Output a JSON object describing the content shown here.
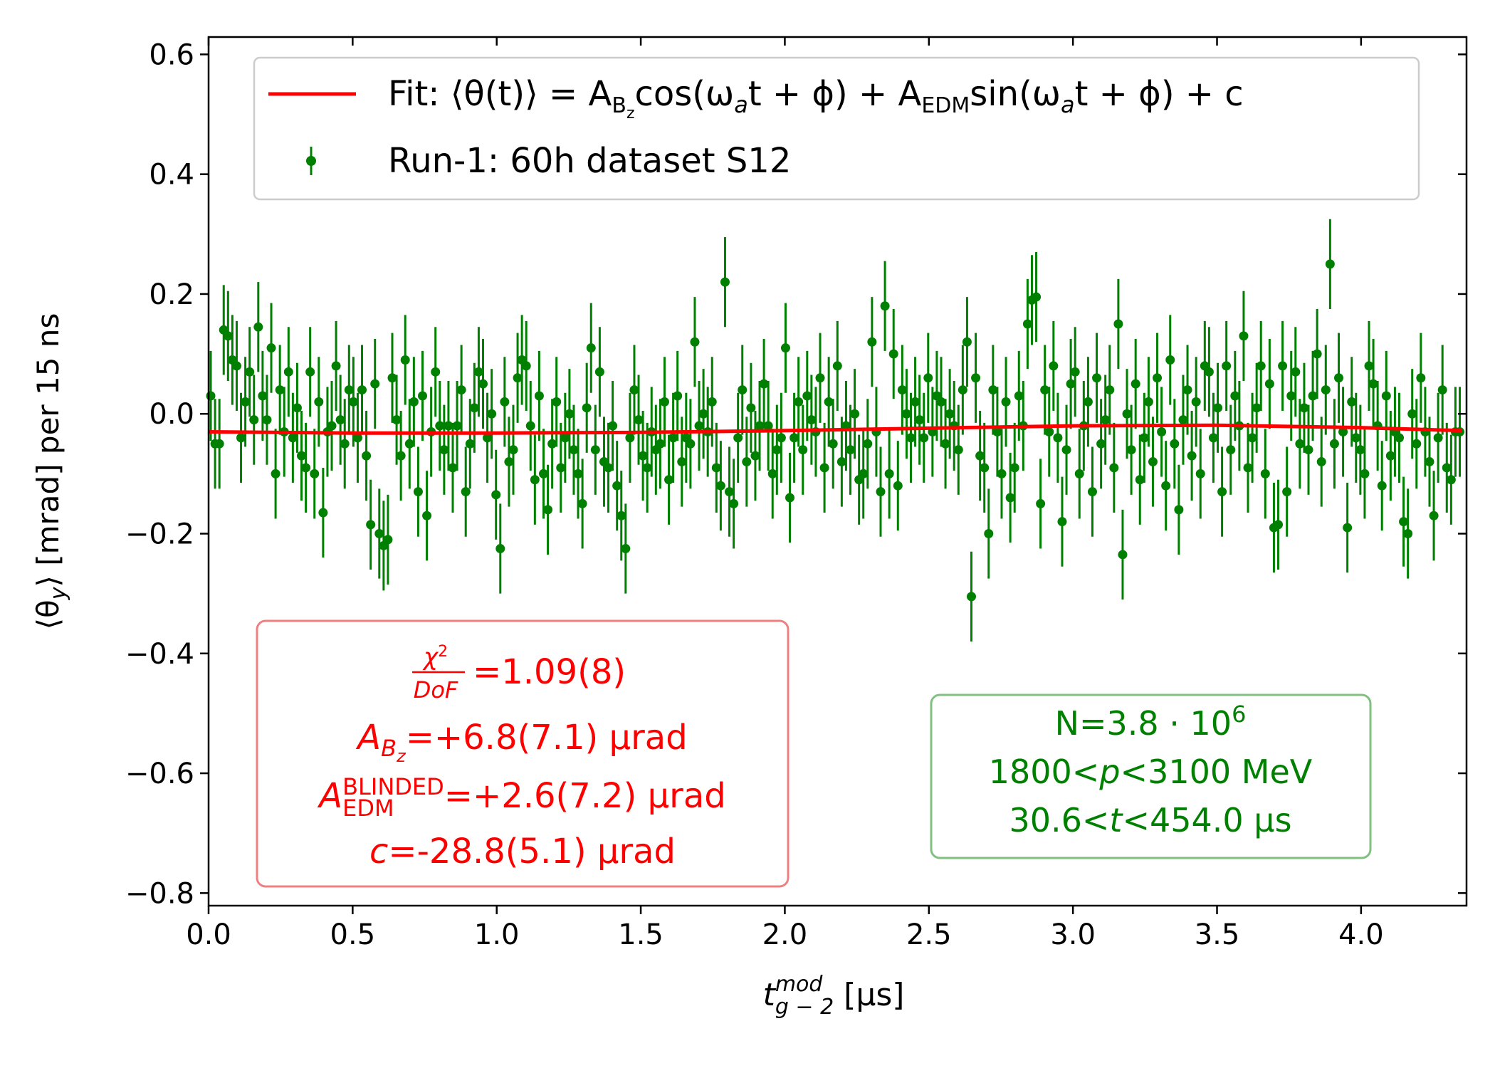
{
  "chart_data": {
    "type": "scatter",
    "xlabel": [
      "t",
      "mod",
      "g − 2",
      " [µs]"
    ],
    "ylabel": [
      "⟨θ",
      "y",
      "⟩ [mrad] per 15 ns"
    ],
    "xlim": [
      0,
      4.366
    ],
    "ylim": [
      -0.821,
      0.629
    ],
    "xticks": [
      {
        "value": 0,
        "label": "0.0"
      },
      0.5,
      {
        "value": 1,
        "label": "1.0"
      },
      1.5,
      {
        "value": 2,
        "label": "2.0"
      },
      2.5,
      {
        "value": 3,
        "label": "3.0"
      },
      3.5,
      {
        "value": 4,
        "label": "4.0"
      }
    ],
    "yticks": [
      {
        "value": -0.8,
        "label": "−0.8"
      },
      {
        "value": -0.6,
        "label": "−0.6"
      },
      {
        "value": -0.4,
        "label": "−0.4"
      },
      {
        "value": -0.2,
        "label": "−0.2"
      },
      {
        "value": 0,
        "label": "0.0"
      },
      0.2,
      0.4,
      0.6
    ],
    "legend": "upper center",
    "series": [
      {
        "type": "line",
        "name": [
          "Fit: ⟨θ(t)⟩ = A",
          "B",
          "z",
          "cos(ω",
          "a",
          "t + ϕ) + A",
          "EDM",
          "sin(ω",
          "a",
          "t + ϕ) + c"
        ],
        "color": "#ff0000",
        "x": [
          0,
          0.5,
          1,
          1.5,
          2,
          2.5,
          3,
          3.5,
          4,
          4.35
        ],
        "values": [
          -0.03,
          -0.032,
          -0.032,
          -0.031,
          -0.028,
          -0.024,
          -0.02,
          -0.019,
          -0.023,
          -0.028
        ]
      },
      {
        "type": "errorbar",
        "name": "Run-1: 60h dataset S12",
        "color": "#008000",
        "yerr": 0.075,
        "x": [
          0.0075,
          0.0225,
          0.0375,
          0.0525,
          0.0675,
          0.0825,
          0.0975,
          0.1125,
          0.1275,
          0.1425,
          0.1575,
          0.1725,
          0.1875,
          0.2025,
          0.2175,
          0.2325,
          0.2475,
          0.2625,
          0.2775,
          0.2925,
          0.3075,
          0.3225,
          0.3375,
          0.3525,
          0.3675,
          0.3825,
          0.3975,
          0.4125,
          0.4275,
          0.4425,
          0.4575,
          0.4725,
          0.4875,
          0.5025,
          0.5175,
          0.5325,
          0.5475,
          0.5625,
          0.5775,
          0.5925,
          0.6075,
          0.6225,
          0.6375,
          0.6525,
          0.6675,
          0.6825,
          0.6975,
          0.7125,
          0.7275,
          0.7425,
          0.7575,
          0.7725,
          0.7875,
          0.8025,
          0.8175,
          0.8325,
          0.8475,
          0.8625,
          0.8775,
          0.8925,
          0.9075,
          0.9225,
          0.9375,
          0.9525,
          0.9675,
          0.9825,
          0.9975,
          1.0125,
          1.0275,
          1.0425,
          1.0575,
          1.0725,
          1.0875,
          1.1025,
          1.1175,
          1.1325,
          1.1475,
          1.1625,
          1.1775,
          1.1925,
          1.2075,
          1.2225,
          1.2375,
          1.2525,
          1.2675,
          1.2825,
          1.2975,
          1.3125,
          1.3275,
          1.3425,
          1.3575,
          1.3725,
          1.3875,
          1.4025,
          1.4175,
          1.4325,
          1.4475,
          1.4625,
          1.4775,
          1.4925,
          1.5075,
          1.5225,
          1.5375,
          1.5525,
          1.5675,
          1.5825,
          1.5975,
          1.6125,
          1.6275,
          1.6425,
          1.6575,
          1.6725,
          1.6875,
          1.7025,
          1.7175,
          1.7325,
          1.7475,
          1.7625,
          1.7775,
          1.7925,
          1.8075,
          1.8225,
          1.8375,
          1.8525,
          1.8675,
          1.8825,
          1.8975,
          1.9125,
          1.9275,
          1.9425,
          1.9575,
          1.9725,
          1.9875,
          2.0025,
          2.0175,
          2.0325,
          2.0475,
          2.0625,
          2.0775,
          2.0925,
          2.1075,
          2.1225,
          2.1375,
          2.1525,
          2.1675,
          2.1825,
          2.1975,
          2.2125,
          2.2275,
          2.2425,
          2.2575,
          2.2725,
          2.2875,
          2.3025,
          2.3175,
          2.3325,
          2.3475,
          2.3625,
          2.3775,
          2.3925,
          2.4075,
          2.4225,
          2.4375,
          2.4525,
          2.4675,
          2.4825,
          2.4975,
          2.5125,
          2.5275,
          2.5425,
          2.5575,
          2.5725,
          2.5875,
          2.6025,
          2.6175,
          2.6325,
          2.6475,
          2.6625,
          2.6775,
          2.6925,
          2.7075,
          2.7225,
          2.7375,
          2.7525,
          2.7675,
          2.7825,
          2.7975,
          2.8125,
          2.8275,
          2.8425,
          2.8575,
          2.8725,
          2.8875,
          2.9025,
          2.9175,
          2.9325,
          2.9475,
          2.9625,
          2.9775,
          2.9925,
          3.0075,
          3.0225,
          3.0375,
          3.0525,
          3.0675,
          3.0825,
          3.0975,
          3.1125,
          3.1275,
          3.1425,
          3.1575,
          3.1725,
          3.1875,
          3.2025,
          3.2175,
          3.2325,
          3.2475,
          3.2625,
          3.2775,
          3.2925,
          3.3075,
          3.3225,
          3.3375,
          3.3525,
          3.3675,
          3.3825,
          3.3975,
          3.4125,
          3.4275,
          3.4425,
          3.4575,
          3.4725,
          3.4875,
          3.5025,
          3.5175,
          3.5325,
          3.5475,
          3.5625,
          3.5775,
          3.5925,
          3.6075,
          3.6225,
          3.6375,
          3.6525,
          3.6675,
          3.6825,
          3.6975,
          3.7125,
          3.7275,
          3.7425,
          3.7575,
          3.7725,
          3.7875,
          3.8025,
          3.8175,
          3.8325,
          3.8475,
          3.8625,
          3.8775,
          3.8925,
          3.9075,
          3.9225,
          3.9375,
          3.9525,
          3.9675,
          3.9825,
          3.9975,
          4.0125,
          4.0275,
          4.0425,
          4.0575,
          4.0725,
          4.0875,
          4.1025,
          4.1175,
          4.1325,
          4.1475,
          4.1625,
          4.1775,
          4.1925,
          4.2075,
          4.2225,
          4.2375,
          4.2525,
          4.2675,
          4.2825,
          4.2975,
          4.3125,
          4.3275,
          4.3425
        ],
        "values": [
          0.03,
          -0.05,
          -0.05,
          0.14,
          0.13,
          0.09,
          0.08,
          -0.04,
          0.02,
          0.07,
          -0.01,
          0.145,
          0.03,
          -0.01,
          0.11,
          -0.1,
          0.04,
          -0.03,
          0.07,
          -0.04,
          0.01,
          -0.07,
          -0.09,
          0.07,
          -0.1,
          0.02,
          -0.165,
          -0.03,
          -0.02,
          0.08,
          -0.01,
          -0.05,
          0.04,
          0.02,
          -0.04,
          0.04,
          -0.07,
          -0.185,
          0.05,
          -0.2,
          -0.22,
          -0.21,
          0.06,
          -0.01,
          -0.07,
          0.09,
          -0.05,
          0.02,
          -0.13,
          0.03,
          -0.17,
          -0.03,
          0.07,
          -0.02,
          -0.06,
          -0.02,
          -0.09,
          -0.02,
          0.04,
          -0.13,
          -0.05,
          0.01,
          0.07,
          0.05,
          -0.04,
          0.0,
          -0.135,
          -0.225,
          0.02,
          -0.08,
          -0.06,
          0.06,
          0.09,
          0.08,
          -0.02,
          -0.11,
          0.03,
          -0.1,
          -0.16,
          -0.05,
          0.02,
          -0.09,
          -0.04,
          0.0,
          -0.06,
          -0.1,
          -0.15,
          0.01,
          0.11,
          -0.06,
          0.07,
          -0.08,
          -0.09,
          -0.02,
          -0.12,
          -0.17,
          -0.225,
          -0.04,
          0.04,
          -0.01,
          -0.07,
          -0.09,
          -0.03,
          -0.06,
          -0.05,
          0.02,
          -0.11,
          -0.04,
          0.03,
          -0.08,
          -0.04,
          -0.05,
          0.12,
          -0.02,
          0.0,
          -0.03,
          0.02,
          -0.09,
          -0.12,
          0.22,
          -0.13,
          -0.15,
          -0.04,
          0.04,
          -0.08,
          0.01,
          -0.07,
          -0.02,
          0.05,
          -0.02,
          -0.1,
          -0.06,
          -0.04,
          0.11,
          -0.14,
          -0.04,
          0.02,
          -0.06,
          0.03,
          -0.01,
          -0.03,
          0.06,
          -0.09,
          0.02,
          -0.05,
          0.08,
          -0.08,
          -0.02,
          -0.06,
          0.0,
          -0.11,
          -0.1,
          -0.05,
          0.12,
          -0.03,
          -0.13,
          0.18,
          -0.1,
          0.1,
          -0.12,
          0.04,
          0.0,
          -0.04,
          0.02,
          -0.01,
          -0.04,
          0.06,
          -0.03,
          0.03,
          0.02,
          -0.05,
          0.0,
          -0.02,
          -0.06,
          0.04,
          0.12,
          -0.305,
          0.06,
          -0.07,
          -0.09,
          -0.2,
          0.04,
          -0.03,
          -0.1,
          0.02,
          -0.14,
          -0.09,
          0.03,
          -0.02,
          0.15,
          0.19,
          0.195,
          -0.15,
          0.04,
          -0.03,
          0.08,
          -0.04,
          -0.18,
          -0.06,
          0.05,
          0.07,
          -0.1,
          -0.02,
          0.02,
          -0.13,
          0.06,
          -0.05,
          -0.01,
          0.04,
          -0.09,
          0.15,
          -0.235,
          0.0,
          -0.06,
          0.05,
          -0.11,
          -0.04,
          0.02,
          -0.08,
          0.06,
          -0.03,
          -0.12,
          0.09,
          -0.05,
          -0.16,
          -0.01,
          0.04,
          -0.07,
          0.02,
          -0.1,
          0.08,
          0.07,
          -0.04,
          0.01,
          -0.13,
          0.08,
          -0.06,
          0.03,
          -0.02,
          0.13,
          -0.09,
          -0.04,
          0.01,
          0.08,
          -0.1,
          0.05,
          -0.19,
          -0.185,
          0.08,
          -0.13,
          0.03,
          0.07,
          -0.05,
          0.01,
          -0.06,
          0.03,
          0.1,
          -0.08,
          0.04,
          0.25,
          -0.05,
          0.06,
          -0.03,
          -0.19,
          0.02,
          -0.04,
          -0.06,
          -0.1,
          0.08,
          0.05,
          -0.02,
          -0.12,
          0.03,
          -0.07,
          -0.03,
          -0.04,
          -0.18,
          -0.2,
          0.0,
          -0.05,
          0.06,
          -0.03,
          -0.08,
          -0.17,
          -0.04,
          0.04,
          -0.09,
          -0.11,
          -0.03,
          -0.03
        ]
      }
    ],
    "annotations": {
      "fit": [
        [
          "χ",
          "2",
          "DoF",
          "=1.09(8)"
        ],
        [
          "A",
          "B",
          "z",
          "=+6.8(7.1) µrad"
        ],
        [
          "A",
          "BLINDED",
          "EDM",
          "=+2.6(7.2) µrad"
        ],
        [
          "c",
          "=-28.8(5.1) µrad"
        ]
      ],
      "dataset": [
        [
          "N=3.8 · 10",
          "6"
        ],
        [
          "1800<",
          "p",
          "<3100 MeV"
        ],
        [
          "30.6<",
          "t",
          "<454.0 µs"
        ]
      ]
    }
  }
}
